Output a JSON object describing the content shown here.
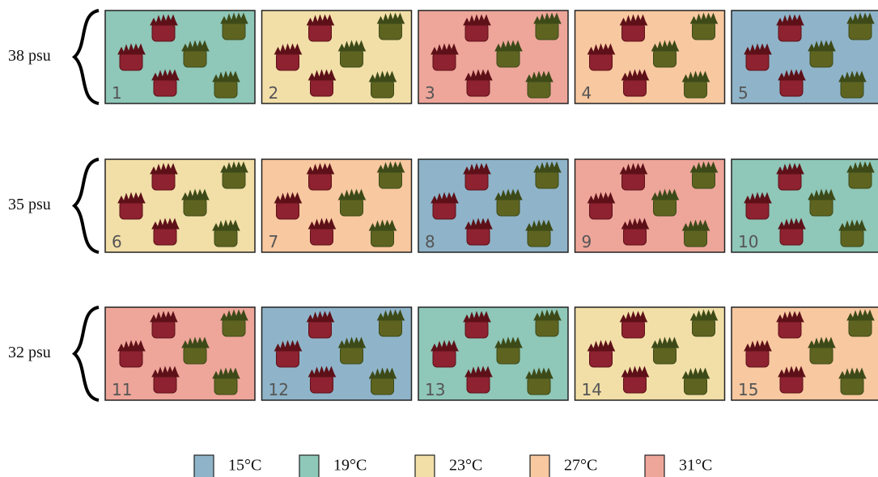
{
  "rows": [
    {
      "label": "38 psu",
      "tanks": [
        {
          "label": "1",
          "color": "#8fc7b8"
        },
        {
          "label": "2",
          "color": "#f2dfa8"
        },
        {
          "label": "3",
          "color": "#eea69a"
        },
        {
          "label": "4",
          "color": "#f8c8a0"
        },
        {
          "label": "5",
          "color": "#8fb4c9"
        }
      ]
    },
    {
      "label": "35 psu",
      "tanks": [
        {
          "label": "6",
          "color": "#f2dfa8"
        },
        {
          "label": "7",
          "color": "#f8c8a0"
        },
        {
          "label": "8",
          "color": "#8fb4c9"
        },
        {
          "label": "9",
          "color": "#eea69a"
        },
        {
          "label": "10",
          "color": "#8fc7b8"
        }
      ]
    },
    {
      "label": "32 psu",
      "tanks": [
        {
          "label": "11",
          "color": "#eea69a"
        },
        {
          "label": "12",
          "color": "#8fb4c9"
        },
        {
          "label": "13",
          "color": "#8fc7b8"
        },
        {
          "label": "14",
          "color": "#f2dfa8"
        },
        {
          "label": "15",
          "color": "#f8c8a0"
        }
      ]
    }
  ],
  "legend": [
    {
      "label": "15°C",
      "color": "#8fb4c9"
    },
    {
      "label": "19°C",
      "color": "#8fc7b8"
    },
    {
      "label": "23°C",
      "color": "#f2dfa8"
    },
    {
      "label": "27°C",
      "color": "#f8c8a0"
    },
    {
      "label": "31°C",
      "color": "#eea69a"
    }
  ]
}
